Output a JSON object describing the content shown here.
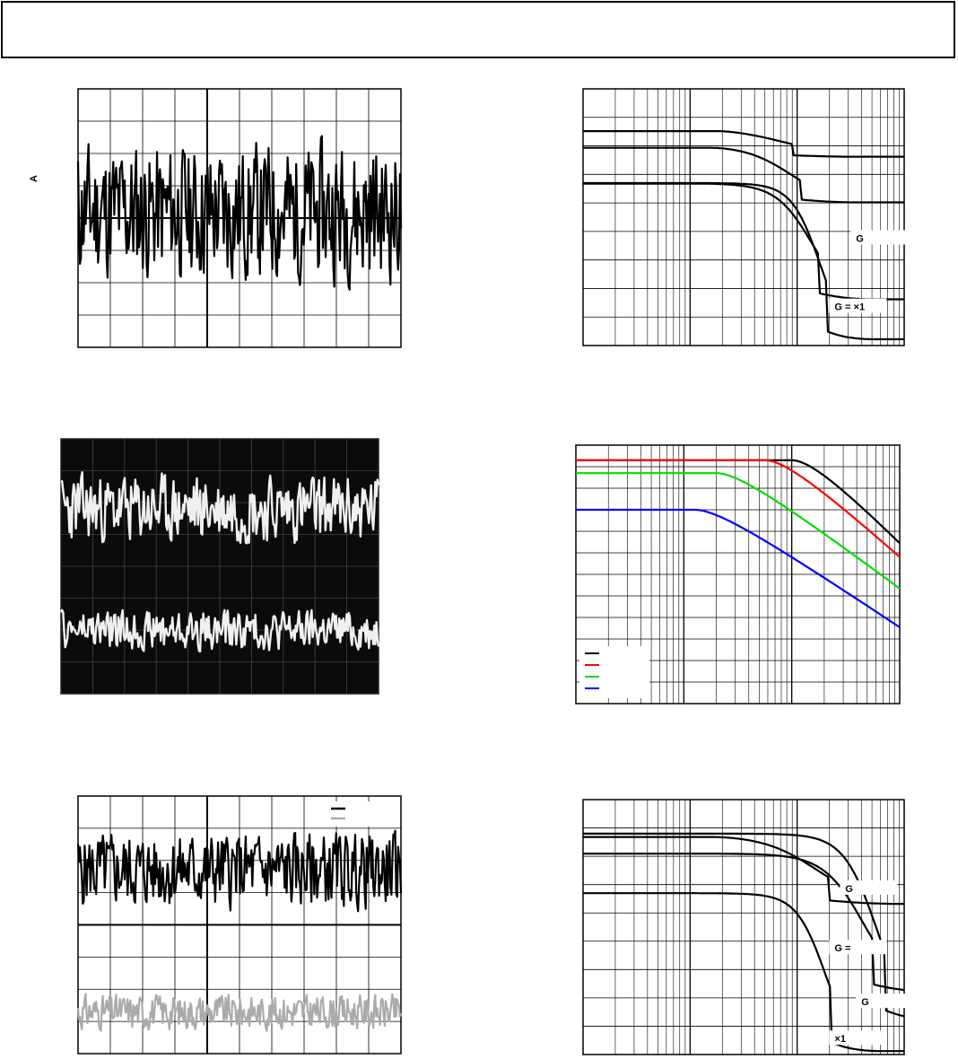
{
  "page": {
    "header_text": ""
  },
  "chart_data": [
    {
      "id": "noise-trace-top",
      "type": "line",
      "side_label": "A",
      "grid": {
        "cols": 10,
        "rows": 8
      },
      "ylim": [
        -4,
        4
      ],
      "series": [
        {
          "color": "#000000",
          "seed": 11,
          "center": 0.2,
          "amp": 1.2,
          "points": 340
        }
      ]
    },
    {
      "id": "response-top-right",
      "type": "line",
      "log_x": true,
      "xlim": [
        0,
        3
      ],
      "ylim": [
        0,
        9
      ],
      "annotations": [
        {
          "text": "G",
          "at": [
            2.55,
            3.7
          ]
        },
        {
          "text": "G = ×1",
          "at": [
            2.35,
            1.3
          ]
        }
      ],
      "series": [
        {
          "color": "#000000",
          "start": 7.8,
          "knee": 1.25,
          "slope": -2.5,
          "floor": 6.6
        },
        {
          "color": "#000000",
          "start": 7.1,
          "knee": 1.2,
          "slope": -3.6,
          "floor": 5.0
        },
        {
          "color": "#000000",
          "start": 5.7,
          "knee": 1.05,
          "slope": -4.6,
          "floor": 1.6
        },
        {
          "color": "#000000",
          "start": 5.7,
          "knee": 1.05,
          "slope": -5.8,
          "floor": 0.2
        }
      ]
    },
    {
      "id": "scope-photo",
      "type": "line",
      "background": "#0b0b0b",
      "grid": {
        "cols": 10,
        "rows": 8
      },
      "ylim": [
        0,
        8
      ],
      "series": [
        {
          "color": "#f0f0f0",
          "seed": 23,
          "center": 5.8,
          "amp": 0.6,
          "points": 300
        },
        {
          "color": "#f0f0f0",
          "seed": 47,
          "center": 2.0,
          "amp": 0.35,
          "points": 300
        }
      ]
    },
    {
      "id": "response-mid-right",
      "type": "line",
      "log_x": true,
      "xlim": [
        0,
        3
      ],
      "ylim": [
        0,
        12
      ],
      "legend": {
        "placement": "bottom-left",
        "entries": [
          "",
          "",
          "",
          ""
        ]
      },
      "series": [
        {
          "color": "#000000",
          "start": 11.3,
          "knee": 2.0,
          "slope": -5.2,
          "floor": 0
        },
        {
          "color": "#ff0000",
          "start": 11.3,
          "knee": 1.75,
          "slope": -4.6,
          "floor": 0
        },
        {
          "color": "#00dd00",
          "start": 10.7,
          "knee": 1.3,
          "slope": -3.8,
          "floor": 0
        },
        {
          "color": "#0000ff",
          "start": 9.0,
          "knee": 1.1,
          "slope": -3.4,
          "floor": 0
        }
      ]
    },
    {
      "id": "noise-trace-bottom",
      "type": "line",
      "grid": {
        "cols": 10,
        "rows": 8
      },
      "ylim": [
        -4,
        4
      ],
      "legend": {
        "placement": "top-right",
        "entries": [
          "",
          ""
        ]
      },
      "series": [
        {
          "color": "#000000",
          "seed": 5,
          "center": 1.7,
          "amp": 0.65,
          "points": 340
        },
        {
          "color": "#aaaaaa",
          "seed": 31,
          "center": -2.7,
          "amp": 0.3,
          "points": 340
        }
      ]
    },
    {
      "id": "response-bottom-right",
      "type": "line",
      "log_x": true,
      "xlim": [
        0,
        3
      ],
      "ylim": [
        0,
        9
      ],
      "annotations": [
        {
          "text": "G",
          "at": [
            2.45,
            5.8
          ]
        },
        {
          "text": "G =",
          "at": [
            2.35,
            3.7
          ]
        },
        {
          "text": "G",
          "at": [
            2.6,
            1.8
          ]
        },
        {
          "text": "×1",
          "at": [
            2.35,
            0.5
          ]
        }
      ],
      "series": [
        {
          "color": "#000000",
          "start": 7.8,
          "knee": 1.2,
          "slope": -3.0,
          "floor": 5.3
        },
        {
          "color": "#000000",
          "start": 7.1,
          "knee": 1.2,
          "slope": -4.0,
          "floor": 2.2
        },
        {
          "color": "#000000",
          "start": 7.8,
          "knee": 1.15,
          "slope": -4.8,
          "floor": 1.2
        },
        {
          "color": "#000000",
          "start": 5.7,
          "knee": 1.05,
          "slope": -5.6,
          "floor": 0.1
        }
      ]
    }
  ]
}
